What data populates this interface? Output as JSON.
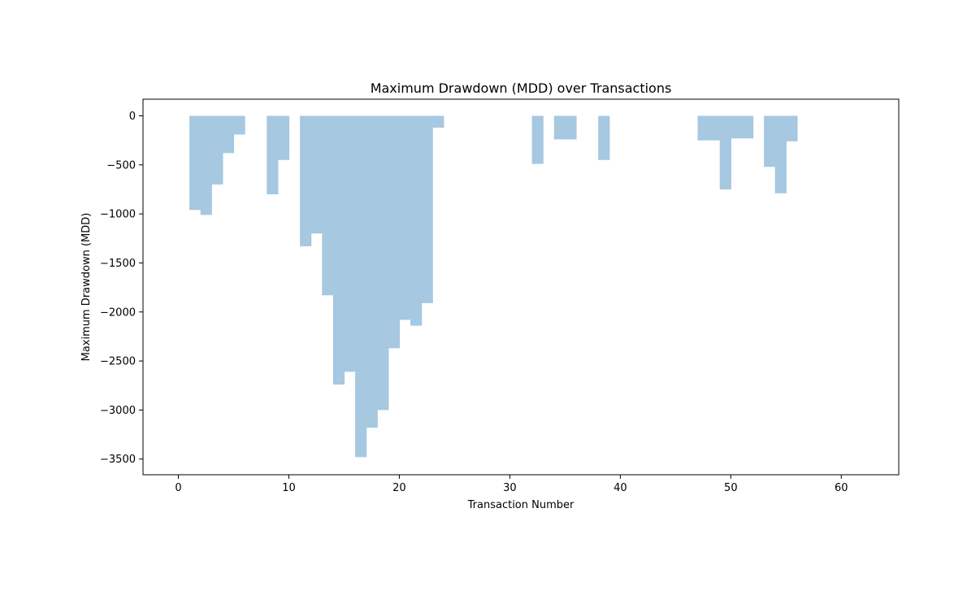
{
  "chart_data": {
    "type": "area",
    "title": "Maximum Drawdown (MDD) over Transactions",
    "xlabel": "Transaction Number",
    "ylabel": "Maximum Drawdown (MDD)",
    "xlim": [
      -3.2,
      65.2
    ],
    "ylim": [
      -3660,
      170
    ],
    "xticks": [
      0,
      10,
      20,
      30,
      40,
      50,
      60
    ],
    "yticks": [
      0,
      -500,
      -1000,
      -1500,
      -2000,
      -2500,
      -3000,
      -3500
    ],
    "grid": false,
    "step": "post",
    "fill_color": "#a6c8e0",
    "x": [
      0,
      1,
      2,
      3,
      4,
      5,
      6,
      7,
      8,
      9,
      10,
      11,
      12,
      13,
      14,
      15,
      16,
      17,
      18,
      19,
      20,
      21,
      22,
      23,
      24,
      25,
      26,
      27,
      28,
      29,
      30,
      31,
      32,
      33,
      34,
      35,
      36,
      37,
      38,
      39,
      40,
      41,
      42,
      43,
      44,
      45,
      46,
      47,
      48,
      49,
      50,
      51,
      52,
      53,
      54,
      55,
      56,
      57,
      58,
      59,
      60,
      61,
      62
    ],
    "values": [
      0,
      -960,
      -1010,
      -700,
      -380,
      -190,
      0,
      0,
      -800,
      -450,
      0,
      -1330,
      -1200,
      -1830,
      -2740,
      -2610,
      -3480,
      -3180,
      -3000,
      -2370,
      -2080,
      -2140,
      -1910,
      -120,
      0,
      0,
      0,
      0,
      0,
      0,
      0,
      0,
      -490,
      0,
      -240,
      -240,
      0,
      0,
      -450,
      0,
      0,
      0,
      0,
      0,
      0,
      0,
      0,
      -250,
      -250,
      -750,
      -230,
      -230,
      0,
      -520,
      -790,
      -260,
      0,
      0,
      0,
      0,
      0,
      0,
      0
    ]
  }
}
